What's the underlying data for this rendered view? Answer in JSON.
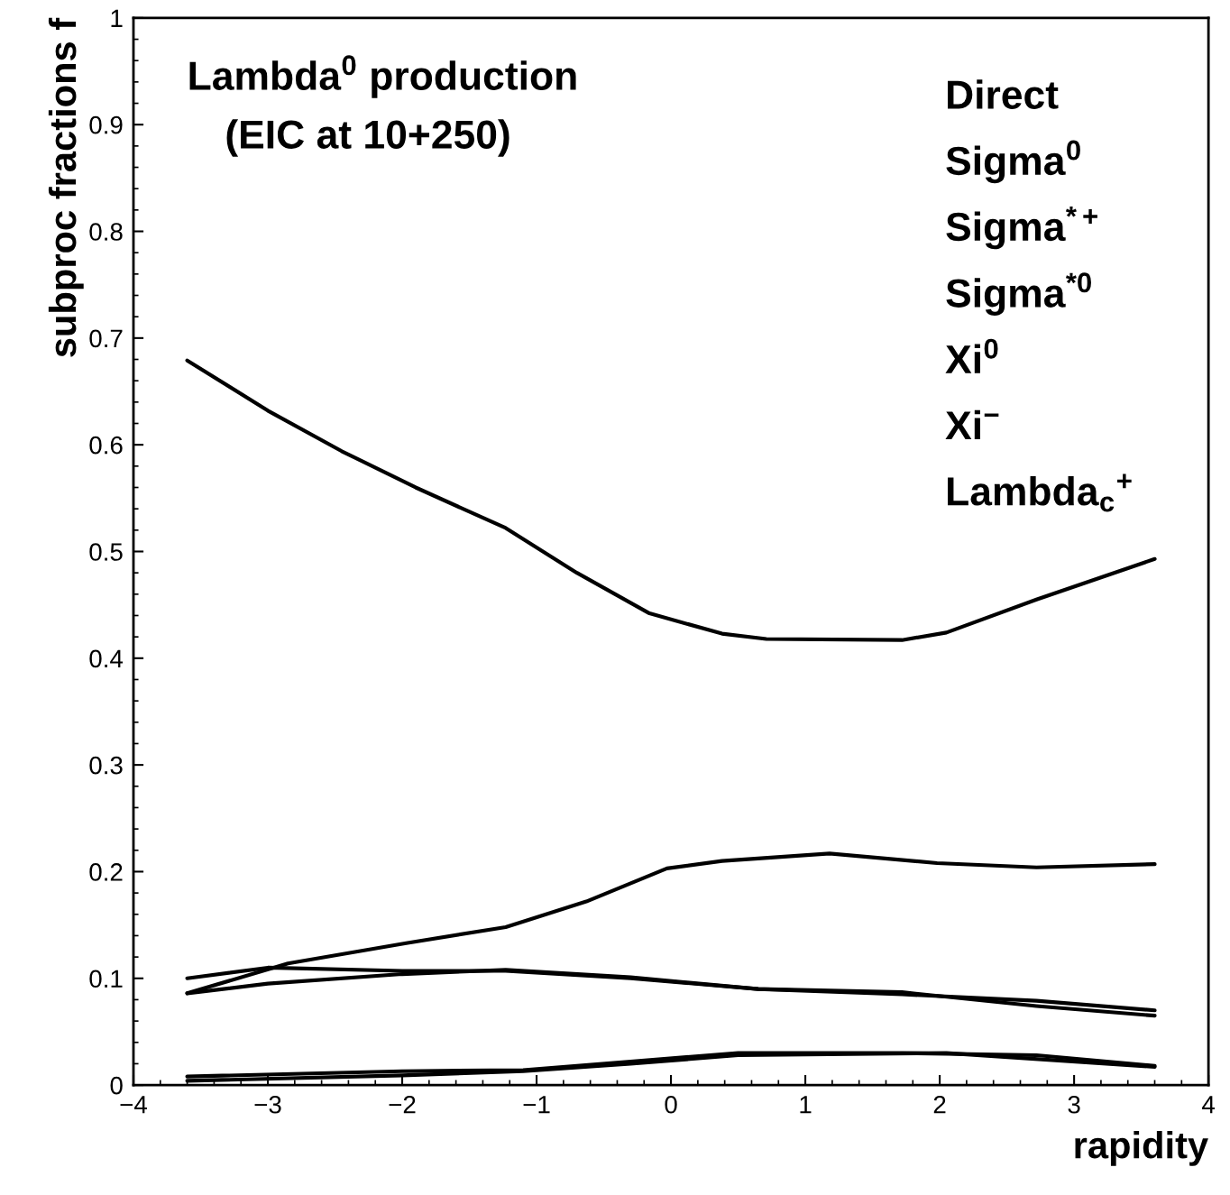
{
  "chart_data": {
    "type": "line",
    "title": "Lambda$^{0}$ production",
    "subtitle": "(EIC at 10+250)",
    "xlabel": "rapidity",
    "ylabel": "subproc fractions f",
    "annotations": [
      "Direct",
      "Sigma$^{0}$",
      "Sigma$^{*+}$",
      "Sigma$^{*0}$",
      "Xi$^{0}$",
      "Xi$^{−}$",
      "Lambda$_{c}$$^{+}$"
    ],
    "xlim": [
      -4,
      4
    ],
    "ylim": [
      0,
      1
    ],
    "xticks": [
      {
        "value": -4,
        "label": "−4"
      },
      {
        "value": -3,
        "label": "−3"
      },
      {
        "value": -2,
        "label": "−2"
      },
      {
        "value": -1,
        "label": "−1"
      },
      0,
      1,
      2,
      3,
      4
    ],
    "yticks": [
      0,
      0.1,
      0.2,
      0.3,
      0.4,
      0.5,
      0.6,
      0.7,
      0.8,
      0.9,
      1
    ],
    "grid": false,
    "legend": false,
    "marker": "none",
    "line_style": "solid",
    "series": [
      {
        "color": "#000000",
        "x": [
          -3.6,
          -3.0,
          -2.45,
          -1.9,
          -1.23,
          -0.7,
          -0.16,
          0.38,
          0.71,
          1.72,
          2.05,
          2.72,
          3.6
        ],
        "values": [
          0.679,
          0.632,
          0.594,
          0.56,
          0.522,
          0.48,
          0.442,
          0.423,
          0.418,
          0.417,
          0.424,
          0.455,
          0.493
        ]
      },
      {
        "color": "#000000",
        "x": [
          -3.6,
          -2.85,
          -1.97,
          -1.23,
          -0.63,
          -0.03,
          0.38,
          1.18,
          1.98,
          2.72,
          3.6
        ],
        "values": [
          0.086,
          0.114,
          0.133,
          0.148,
          0.172,
          0.203,
          0.21,
          0.217,
          0.208,
          0.204,
          0.207
        ]
      },
      {
        "color": "#000000",
        "x": [
          -3.6,
          -3.0,
          -2.0,
          -1.23,
          -0.3,
          0.65,
          1.72,
          2.72,
          3.6
        ],
        "values": [
          0.1,
          0.11,
          0.107,
          0.107,
          0.1,
          0.09,
          0.085,
          0.079,
          0.07
        ]
      },
      {
        "color": "#000000",
        "x": [
          -3.6,
          -3.0,
          -2.0,
          -1.23,
          -0.3,
          0.65,
          1.72,
          2.72,
          3.6
        ],
        "values": [
          0.086,
          0.095,
          0.104,
          0.108,
          0.101,
          0.09,
          0.087,
          0.074,
          0.065
        ]
      },
      {
        "color": "#000000",
        "x": [
          -3.6,
          -2.0,
          -1.1,
          -0.3,
          0.5,
          1.72,
          2.72,
          3.6
        ],
        "values": [
          0.008,
          0.013,
          0.014,
          0.022,
          0.03,
          0.03,
          0.028,
          0.018
        ]
      },
      {
        "color": "#000000",
        "x": [
          -3.6,
          -2.0,
          -1.1,
          -0.3,
          0.5,
          2.05,
          3.6
        ],
        "values": [
          0.004,
          0.009,
          0.013,
          0.02,
          0.028,
          0.03,
          0.017
        ]
      }
    ]
  }
}
